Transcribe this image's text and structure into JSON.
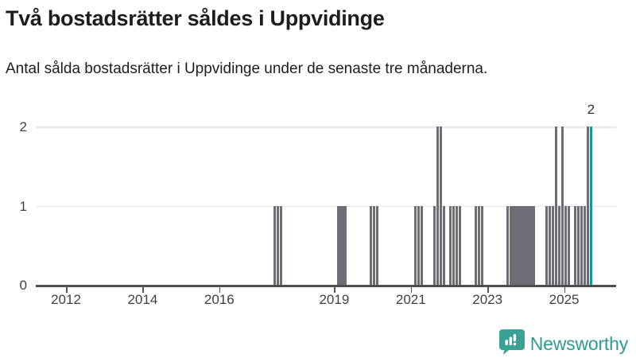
{
  "chart_data": {
    "type": "bar",
    "title": "Två bostadsrätter såldes i Uppvidinge",
    "subtitle": "Antal sålda bostadsrätter i Uppvidinge under de senaste tre månaderna.",
    "ylabel": "",
    "xlabel": "",
    "ylim": [
      0,
      2
    ],
    "yticks": [
      0,
      1,
      2
    ],
    "xticks": [
      2012,
      2014,
      2016,
      2019,
      2021,
      2023,
      2025
    ],
    "grid": "horizontal",
    "legend": "none",
    "highlight_month": "2025-09",
    "highlight_value": 2,
    "highlight_value_label": "2",
    "series": [
      {
        "month": "2017-06",
        "value": 1
      },
      {
        "month": "2017-07",
        "value": 1
      },
      {
        "month": "2017-08",
        "value": 1
      },
      {
        "month": "2019-02",
        "value": 1
      },
      {
        "month": "2019-03",
        "value": 1
      },
      {
        "month": "2019-04",
        "value": 1
      },
      {
        "month": "2019-12",
        "value": 1
      },
      {
        "month": "2020-01",
        "value": 1
      },
      {
        "month": "2020-02",
        "value": 1
      },
      {
        "month": "2021-02",
        "value": 1
      },
      {
        "month": "2021-03",
        "value": 1
      },
      {
        "month": "2021-04",
        "value": 1
      },
      {
        "month": "2021-08",
        "value": 1
      },
      {
        "month": "2021-09",
        "value": 2
      },
      {
        "month": "2021-10",
        "value": 2
      },
      {
        "month": "2021-11",
        "value": 1
      },
      {
        "month": "2022-01",
        "value": 1
      },
      {
        "month": "2022-02",
        "value": 1
      },
      {
        "month": "2022-03",
        "value": 1
      },
      {
        "month": "2022-04",
        "value": 1
      },
      {
        "month": "2022-09",
        "value": 1
      },
      {
        "month": "2022-10",
        "value": 1
      },
      {
        "month": "2022-11",
        "value": 1
      },
      {
        "month": "2023-07",
        "value": 1
      },
      {
        "month": "2023-08",
        "value": 1
      },
      {
        "month": "2023-09",
        "value": 1
      },
      {
        "month": "2023-10",
        "value": 1
      },
      {
        "month": "2023-11",
        "value": 1
      },
      {
        "month": "2023-12",
        "value": 1
      },
      {
        "month": "2024-01",
        "value": 1
      },
      {
        "month": "2024-02",
        "value": 1
      },
      {
        "month": "2024-03",
        "value": 1
      },
      {
        "month": "2024-07",
        "value": 1
      },
      {
        "month": "2024-08",
        "value": 1
      },
      {
        "month": "2024-09",
        "value": 1
      },
      {
        "month": "2024-10",
        "value": 2
      },
      {
        "month": "2024-11",
        "value": 1
      },
      {
        "month": "2024-12",
        "value": 2
      },
      {
        "month": "2025-01",
        "value": 1
      },
      {
        "month": "2025-02",
        "value": 1
      },
      {
        "month": "2025-04",
        "value": 1
      },
      {
        "month": "2025-05",
        "value": 1
      },
      {
        "month": "2025-06",
        "value": 1
      },
      {
        "month": "2025-07",
        "value": 1
      },
      {
        "month": "2025-08",
        "value": 2
      },
      {
        "month": "2025-09",
        "value": 2
      }
    ],
    "colors": {
      "bar": "#6d6d75",
      "highlight": "#0f9a9c",
      "grid": "#e8e8e8",
      "axis": "#4f4f4f",
      "text": "#1d1d1b",
      "tick_text": "#404040",
      "brand": "#2e9b92"
    }
  },
  "footer": {
    "brand_label": "Newsworthy"
  }
}
